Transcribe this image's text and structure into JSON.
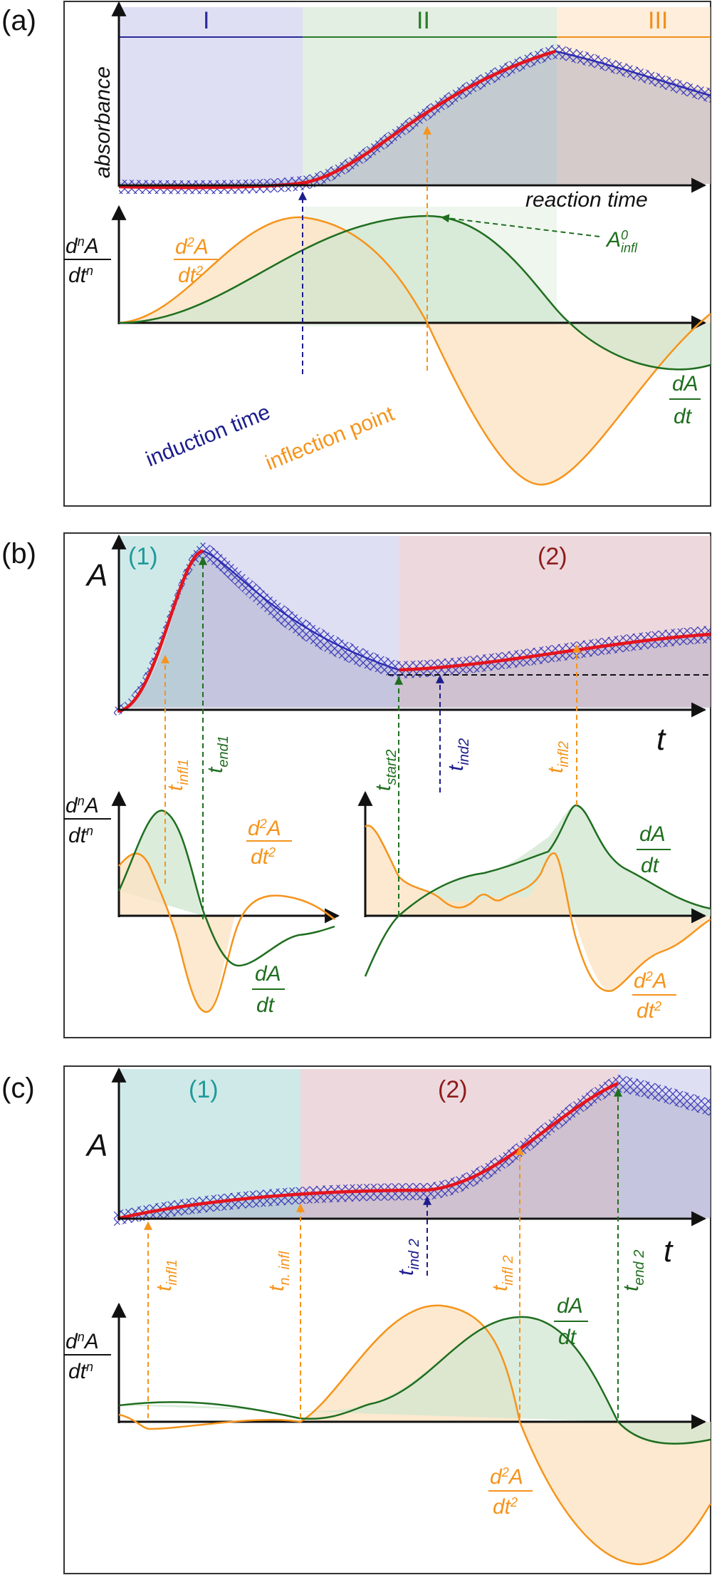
{
  "panels": [
    {
      "id": "a",
      "tag": "(a)",
      "y_label": "absorbance",
      "x_label": "reaction time",
      "regions": [
        "I",
        "II",
        "III"
      ],
      "deriv_axis": {
        "num": "d",
        "sup": "n",
        "mid": "A",
        "den": "dt",
        "den_sup": "n"
      },
      "annotations": {
        "induction": "induction time",
        "inflection": "inflection point",
        "a_infl_base": "A",
        "a_infl_sup": "0",
        "a_infl_sub": "infl",
        "d2": {
          "num": "d",
          "sup": "2",
          "mid": "A",
          "den": "dt",
          "den_sup": "2"
        },
        "d1": {
          "num": "dA",
          "den": "dt"
        }
      }
    },
    {
      "id": "b",
      "tag": "(b)",
      "y_label": "A",
      "x_label": "t",
      "regions": [
        "(1)",
        "(2)"
      ],
      "deriv_axis": {
        "num": "d",
        "sup": "n",
        "mid": "A",
        "den": "dt",
        "den_sup": "n"
      },
      "markers": [
        {
          "base": "t",
          "sub": "infl1"
        },
        {
          "base": "t",
          "sub": "end1"
        },
        {
          "base": "t",
          "sub": "start2"
        },
        {
          "base": "t",
          "sub": "ind2"
        },
        {
          "base": "t",
          "sub": "infl2"
        }
      ],
      "d2": {
        "num": "d",
        "sup": "2",
        "mid": "A",
        "den": "dt",
        "den_sup": "2"
      },
      "d1": {
        "num": "dA",
        "den": "dt"
      }
    },
    {
      "id": "c",
      "tag": "(c)",
      "y_label": "A",
      "x_label": "t",
      "regions": [
        "(1)",
        "(2)"
      ],
      "deriv_axis": {
        "num": "d",
        "sup": "n",
        "mid": "A",
        "den": "dt",
        "den_sup": "n"
      },
      "markers": [
        {
          "base": "t",
          "sub": "infl1"
        },
        {
          "base": "t",
          "sub": "n. infl"
        },
        {
          "base": "t",
          "sub": "ind 2"
        },
        {
          "base": "t",
          "sub": "infl 2"
        },
        {
          "base": "t",
          "sub": "end 2"
        }
      ],
      "d2": {
        "num": "d",
        "sup": "2",
        "mid": "A",
        "den": "dt",
        "den_sup": "2"
      },
      "d1": {
        "num": "dA",
        "den": "dt"
      }
    }
  ],
  "colors": {
    "blue_region": "#c9c9ec",
    "green_region": "#cfe5cf",
    "orange_region": "#fde3c3",
    "teal_region": "#c3e4e4",
    "mauve_region": "#e6c9cf",
    "data_marker": "#2d2db4",
    "fit_curve": "#e4141e",
    "first_deriv": "#1f6e1f",
    "second_deriv": "#f5941c",
    "induction": "#1c1c8c"
  }
}
